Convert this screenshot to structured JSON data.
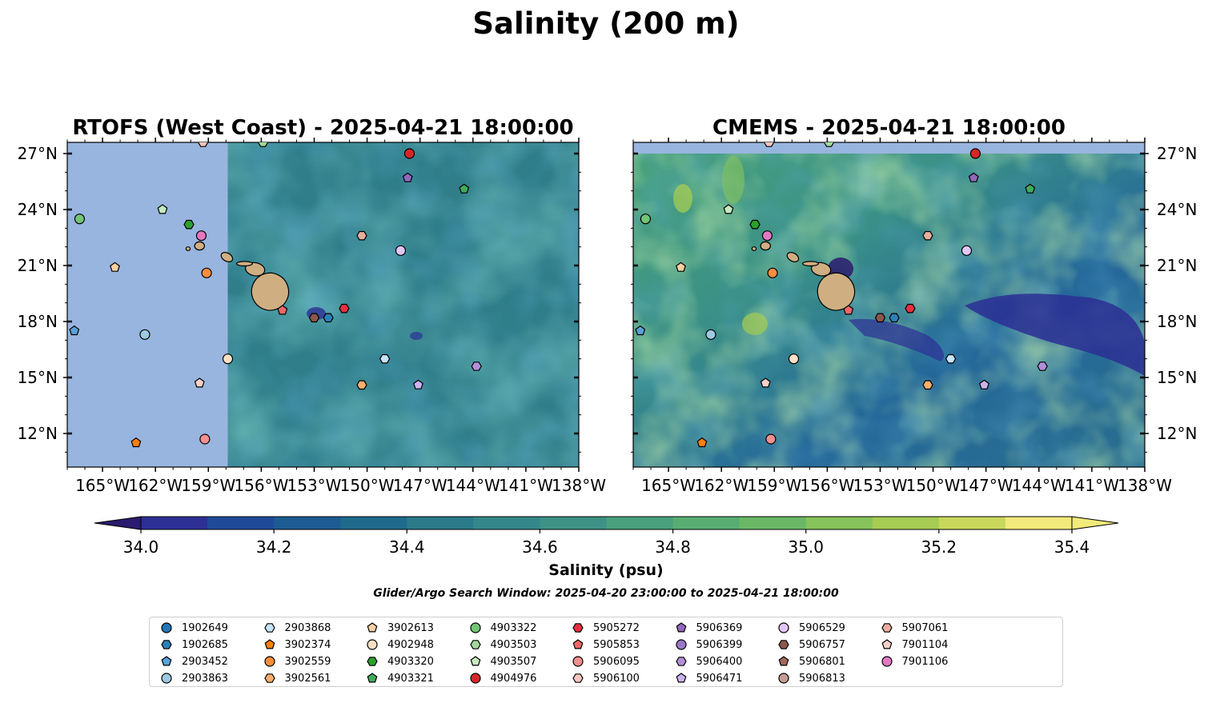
{
  "figure": {
    "title": "Salinity (200 m)",
    "colorbar_label": "Salinity (psu)",
    "search_window": "Glider/Argo Search Window: 2025-04-20 23:00:00 to 2025-04-21 18:00:00"
  },
  "chart_data": [
    {
      "type": "heatmap",
      "title": "RTOFS (West Coast) - 2025-04-21 18:00:00",
      "xlim": [
        -167,
        -138
      ],
      "ylim": [
        10.2,
        27.6
      ],
      "xticks": [
        -165,
        -162,
        -159,
        -156,
        -153,
        -150,
        -147,
        -144,
        -141,
        -138
      ],
      "xtick_labels": [
        "165°W",
        "162°W",
        "159°W",
        "156°W",
        "153°W",
        "150°W",
        "147°W",
        "144°W",
        "141°W",
        "138°W"
      ],
      "yticks": [
        12,
        15,
        18,
        21,
        24,
        27
      ],
      "ytick_labels": [
        "12°N",
        "15°N",
        "18°N",
        "21°N",
        "24°N",
        "27°N"
      ],
      "data_west_limit_lon": -157.9,
      "grid": false
    },
    {
      "type": "heatmap",
      "title": "CMEMS - 2025-04-21 18:00:00",
      "xlim": [
        -167,
        -138
      ],
      "ylim": [
        10.2,
        27.6
      ],
      "xticks": [
        -165,
        -162,
        -159,
        -156,
        -153,
        -150,
        -147,
        -144,
        -141,
        -138
      ],
      "xtick_labels": [
        "165°W",
        "162°W",
        "159°W",
        "156°W",
        "153°W",
        "150°W",
        "147°W",
        "144°W",
        "141°W",
        "138°W"
      ],
      "yticks": [
        12,
        15,
        18,
        21,
        24,
        27
      ],
      "ytick_labels": [
        "12°N",
        "15°N",
        "18°N",
        "21°N",
        "24°N",
        "27°N"
      ],
      "data_north_limit_lat": 27.0,
      "grid": false
    }
  ],
  "colorbar": {
    "min": 34.0,
    "max": 35.4,
    "step": 0.1,
    "ticks": [
      34.0,
      34.2,
      34.4,
      34.6,
      34.8,
      35.0,
      35.2,
      35.4
    ],
    "tick_labels": [
      "34.0",
      "34.2",
      "34.4",
      "34.6",
      "34.8",
      "35.0",
      "35.2",
      "35.4"
    ],
    "colors": [
      "#2a1b6e",
      "#2c2f94",
      "#1f4a9a",
      "#1c5c92",
      "#1f6a8c",
      "#2a7a8a",
      "#34878a",
      "#3d9285",
      "#48a07c",
      "#58ad72",
      "#6ab866",
      "#86c35a",
      "#a6cc53",
      "#c9d85c",
      "#f2ea7a"
    ]
  },
  "colors": {
    "ocean_nodata": "#98b5df",
    "land": "#cfae82",
    "field_base": "#2f7e8a"
  },
  "floats": [
    {
      "id": "1902649",
      "marker": "circle",
      "color": "#1f77b4",
      "lon": null,
      "lat": null
    },
    {
      "id": "1902685",
      "marker": "hexagon",
      "color": "#2c7fb8",
      "lon": -152.2,
      "lat": 18.2
    },
    {
      "id": "2903452",
      "marker": "pentagon",
      "color": "#5aa1d8",
      "lon": -166.6,
      "lat": 17.5
    },
    {
      "id": "2903863",
      "marker": "circle",
      "color": "#9ecae1",
      "lon": -162.6,
      "lat": 17.3
    },
    {
      "id": "2903868",
      "marker": "hexagon",
      "color": "#c6e4fb",
      "lon": -149.0,
      "lat": 16.0
    },
    {
      "id": "3902374",
      "marker": "pentagon",
      "color": "#ff7f0e",
      "lon": -163.1,
      "lat": 11.5
    },
    {
      "id": "3902559",
      "marker": "circle",
      "color": "#fd8d3c",
      "lon": -159.1,
      "lat": 20.6
    },
    {
      "id": "3902561",
      "marker": "hexagon",
      "color": "#fdae6b",
      "lon": -150.3,
      "lat": 14.6
    },
    {
      "id": "3902613",
      "marker": "pentagon",
      "color": "#fdd0a2",
      "lon": -164.3,
      "lat": 20.9
    },
    {
      "id": "4902948",
      "marker": "circle",
      "color": "#fde0c5",
      "lon": -157.9,
      "lat": 16.0
    },
    {
      "id": "4903320",
      "marker": "hexagon",
      "color": "#2ca02c",
      "lon": -160.1,
      "lat": 23.2
    },
    {
      "id": "4903321",
      "marker": "pentagon",
      "color": "#41ab5d",
      "lon": -144.5,
      "lat": 25.1
    },
    {
      "id": "4903322",
      "marker": "circle",
      "color": "#74c476",
      "lon": -166.3,
      "lat": 23.5
    },
    {
      "id": "4903503",
      "marker": "hexagon",
      "color": "#a1d99b",
      "lon": -155.9,
      "lat": 27.6
    },
    {
      "id": "4903507",
      "marker": "pentagon",
      "color": "#c7e9c0",
      "lon": -161.6,
      "lat": 24.0
    },
    {
      "id": "4904976",
      "marker": "circle",
      "color": "#d62728",
      "lon": -147.6,
      "lat": 27.0
    },
    {
      "id": "5905272",
      "marker": "hexagon",
      "color": "#e6303f",
      "lon": -151.3,
      "lat": 18.7
    },
    {
      "id": "5905853",
      "marker": "pentagon",
      "color": "#f06868",
      "lon": -154.8,
      "lat": 18.6
    },
    {
      "id": "5906095",
      "marker": "circle",
      "color": "#f4908f",
      "lon": -159.2,
      "lat": 11.7
    },
    {
      "id": "5906100",
      "marker": "hexagon",
      "color": "#fcc5c0",
      "lon": -159.3,
      "lat": 27.6
    },
    {
      "id": "5906369",
      "marker": "pentagon",
      "color": "#9467bd",
      "lon": -147.7,
      "lat": 25.7
    },
    {
      "id": "5906399",
      "marker": "circle",
      "color": "#9a77c7",
      "lon": null,
      "lat": null
    },
    {
      "id": "5906400",
      "marker": "hexagon",
      "color": "#b28fd8",
      "lon": -143.8,
      "lat": 15.6
    },
    {
      "id": "5906471",
      "marker": "pentagon",
      "color": "#cbb4ec",
      "lon": -147.1,
      "lat": 14.6
    },
    {
      "id": "5906529",
      "marker": "circle",
      "color": "#e2c6f5",
      "lon": -148.1,
      "lat": 21.8
    },
    {
      "id": "5906757",
      "marker": "hexagon",
      "color": "#8c564b",
      "lon": -153.0,
      "lat": 18.2
    },
    {
      "id": "5906801",
      "marker": "pentagon",
      "color": "#a0685c",
      "lon": null,
      "lat": null
    },
    {
      "id": "5906813",
      "marker": "circle",
      "color": "#c49c94",
      "lon": null,
      "lat": null
    },
    {
      "id": "5907061",
      "marker": "hexagon",
      "color": "#e8ad9c",
      "lon": -150.3,
      "lat": 22.6
    },
    {
      "id": "7901104",
      "marker": "pentagon",
      "color": "#fbd0c8",
      "lon": -159.5,
      "lat": 14.7
    },
    {
      "id": "7901106",
      "marker": "circle",
      "color": "#e377c2",
      "lon": -159.4,
      "lat": 22.6
    }
  ]
}
